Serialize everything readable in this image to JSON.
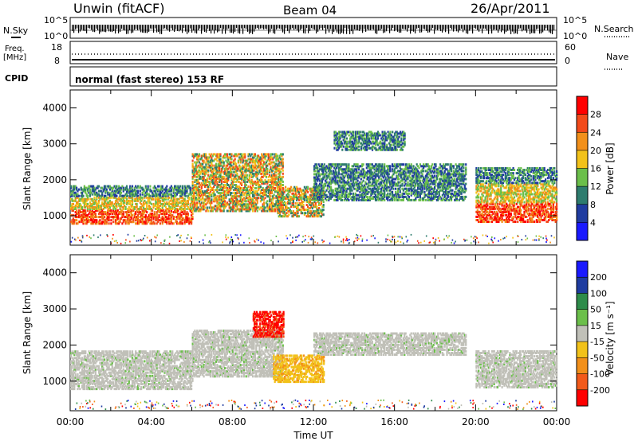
{
  "header": {
    "station": "Unwin (fitACF)",
    "beam": "Beam 04",
    "date": "26/Apr/2011"
  },
  "top_panels": {
    "nsky_label": "N.Sky",
    "nsky_ticks": [
      "10^5",
      "10^0"
    ],
    "nsearch_label": "N.Search",
    "nsearch_ticks": [
      "10^5",
      "10^0"
    ],
    "freq_label": "Freq.",
    "freq_unit": "[MHz]",
    "freq_ticks": [
      "18",
      "8"
    ],
    "nave_label": "Nave",
    "nave_ticks": [
      "60",
      "0"
    ],
    "cpid_label": "CPID",
    "cpid_text": "normal (fast stereo) 153 RF"
  },
  "chart_data": [
    {
      "type": "heatmap",
      "name": "power-panel",
      "ylabel": "Slant Range [km]",
      "ylim": [
        180,
        4500
      ],
      "yticks": [
        1000,
        2000,
        3000,
        4000
      ],
      "xlim_hours": [
        0,
        24
      ],
      "colorbar": {
        "label": "Power [dB]",
        "ticks": [
          "4",
          "8",
          "12",
          "16",
          "20",
          "24",
          "28"
        ],
        "colors": [
          "#1a1aff",
          "#203ca0",
          "#2e7c6e",
          "#6bbf4a",
          "#f2c21a",
          "#f2901a",
          "#f24a1a",
          "#ff0000"
        ]
      },
      "echo_regions": [
        {
          "t0": 0.0,
          "t1": 6.0,
          "r0": 750,
          "r1": 1800,
          "level": "strong"
        },
        {
          "t0": 6.0,
          "t1": 10.5,
          "r0": 1100,
          "r1": 2700,
          "level": "mixed"
        },
        {
          "t0": 10.2,
          "t1": 12.5,
          "r0": 950,
          "r1": 1800,
          "level": "mixed"
        },
        {
          "t0": 12.0,
          "t1": 19.5,
          "r0": 1400,
          "r1": 2400,
          "level": "weak"
        },
        {
          "t0": 13.0,
          "t1": 16.5,
          "r0": 2800,
          "r1": 3300,
          "level": "weak"
        },
        {
          "t0": 20.0,
          "t1": 24.0,
          "r0": 800,
          "r1": 2300,
          "level": "strong"
        }
      ]
    },
    {
      "type": "heatmap",
      "name": "velocity-panel",
      "ylabel": "Slant Range [km]",
      "xlabel": "Time UT",
      "ylim": [
        180,
        4500
      ],
      "yticks": [
        1000,
        2000,
        3000,
        4000
      ],
      "xlim_hours": [
        0,
        24
      ],
      "xticks": [
        "00:00",
        "04:00",
        "08:00",
        "12:00",
        "16:00",
        "20:00",
        "00:00"
      ],
      "colorbar": {
        "label": "Velocity [m s⁻¹]",
        "ticks": [
          "200",
          "100",
          "50",
          "15",
          "-15",
          "-50",
          "-100",
          "-200"
        ],
        "colors": [
          "#1a1aff",
          "#1f3ca0",
          "#2e8c4a",
          "#6bbf4a",
          "#c0c0b8",
          "#f2c21a",
          "#f2901a",
          "#f25a1a",
          "#ff0000"
        ]
      },
      "echo_regions": [
        {
          "t0": 0.0,
          "t1": 6.0,
          "r0": 750,
          "r1": 1800,
          "level": "ground"
        },
        {
          "t0": 6.0,
          "t1": 10.5,
          "r0": 1100,
          "r1": 2400,
          "level": "ground"
        },
        {
          "t0": 9.0,
          "t1": 10.5,
          "r0": 2200,
          "r1": 2900,
          "level": "negative-strong"
        },
        {
          "t0": 10.0,
          "t1": 12.5,
          "r0": 950,
          "r1": 1700,
          "level": "negative"
        },
        {
          "t0": 12.0,
          "t1": 19.5,
          "r0": 1700,
          "r1": 2300,
          "level": "ground"
        },
        {
          "t0": 20.0,
          "t1": 24.0,
          "r0": 800,
          "r1": 1800,
          "level": "ground"
        }
      ]
    }
  ]
}
